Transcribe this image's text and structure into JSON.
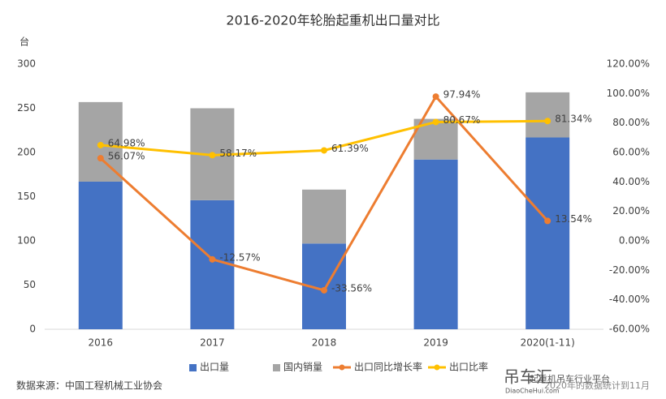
{
  "chart_data": {
    "type": "bar",
    "title": "2016-2020年轮胎起重机出口量对比",
    "y_unit": "台",
    "source": "数据来源：中国工程机械工业协会",
    "watermark": {
      "logo": "吊车汇",
      "site": "DiaoCheHui.com",
      "slogan": "起重机吊车行业平台",
      "note": "2020年的数据统计到11月"
    },
    "categories": [
      "2016",
      "2017",
      "2018",
      "2019",
      "2020(1-11)"
    ],
    "stacked": true,
    "series": [
      {
        "name": "出口量",
        "type": "bar",
        "color": "#4472c4",
        "values": [
          167,
          146,
          97,
          192,
          217
        ]
      },
      {
        "name": "国内销量",
        "type": "bar",
        "color": "#a5a5a5",
        "values": [
          90,
          104,
          61,
          46,
          51
        ]
      },
      {
        "name": "出口同比增长率",
        "type": "line",
        "axis": "y2",
        "color": "#ed7d31",
        "values": [
          56.07,
          -12.57,
          -33.56,
          97.94,
          13.54
        ],
        "value_labels": [
          "56.07%",
          "-12.57%",
          "-33.56%",
          "97.94%",
          "13.54%"
        ]
      },
      {
        "name": "出口比率",
        "type": "line",
        "axis": "y2",
        "color": "#ffc000",
        "values": [
          64.98,
          58.17,
          61.39,
          80.67,
          81.34
        ],
        "value_labels": [
          "64.98%",
          "58.17%",
          "61.39%",
          "80.67%",
          "81.34%"
        ]
      }
    ],
    "ylim": [
      0,
      300
    ],
    "yticks": [
      0,
      50,
      100,
      150,
      200,
      250,
      300
    ],
    "y2lim": [
      -60,
      120
    ],
    "y2ticks": [
      {
        "value": -60,
        "label": "-60.00%"
      },
      {
        "value": -40,
        "label": "-40.00%"
      },
      {
        "value": -20,
        "label": "-20.00%"
      },
      {
        "value": 0,
        "label": "0.00%"
      },
      {
        "value": 20,
        "label": "20.00%"
      },
      {
        "value": 40,
        "label": "40.00%"
      },
      {
        "value": 60,
        "label": "60.00%"
      },
      {
        "value": 80,
        "label": "80.00%"
      },
      {
        "value": 100,
        "label": "100.00%"
      },
      {
        "value": 120,
        "label": "120.00%"
      }
    ],
    "legend": "bottom"
  }
}
